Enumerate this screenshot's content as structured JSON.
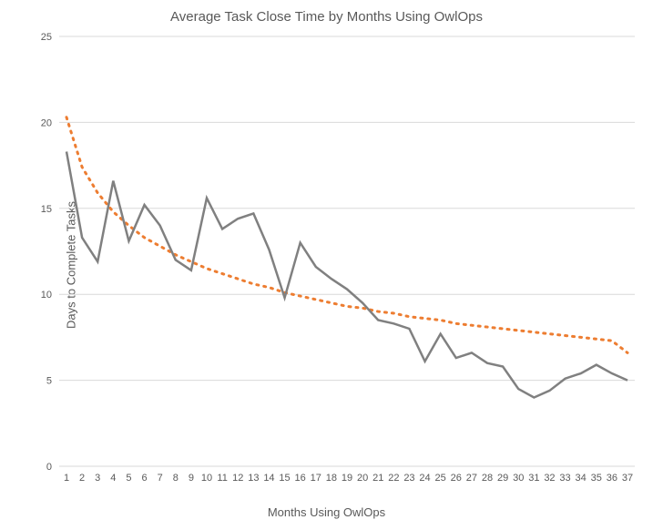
{
  "chart": {
    "type": "line",
    "title": "Average Task Close Time by Months Using OwlOps",
    "title_fontsize": 15,
    "title_color": "#595959",
    "xlabel": "Months Using OwlOps",
    "ylabel": "Days to Complete Tasks",
    "label_fontsize": 13,
    "label_color": "#595959",
    "background_color": "#ffffff",
    "grid_color": "#d9d9d9",
    "tick_color": "#595959",
    "tick_fontsize": 11,
    "ylim": [
      0,
      25
    ],
    "ytick_step": 5,
    "yticks": [
      0,
      5,
      10,
      15,
      20,
      25
    ],
    "xlim": [
      1,
      37
    ],
    "xticks": [
      1,
      2,
      3,
      4,
      5,
      6,
      7,
      8,
      9,
      10,
      11,
      12,
      13,
      14,
      15,
      16,
      17,
      18,
      19,
      20,
      21,
      22,
      23,
      24,
      25,
      26,
      27,
      28,
      29,
      30,
      31,
      32,
      33,
      34,
      35,
      36,
      37
    ],
    "series": {
      "data_line": {
        "color": "#808080",
        "width": 2.5,
        "x": [
          1,
          2,
          3,
          4,
          5,
          6,
          7,
          8,
          9,
          10,
          11,
          12,
          13,
          14,
          15,
          16,
          17,
          18,
          19,
          20,
          21,
          22,
          23,
          24,
          25,
          26,
          27,
          28,
          29,
          30,
          31,
          32,
          33,
          34,
          35,
          36,
          37
        ],
        "y": [
          18.3,
          13.3,
          11.9,
          16.6,
          13.1,
          15.2,
          14.0,
          12.0,
          11.4,
          15.6,
          13.8,
          14.4,
          14.7,
          12.6,
          9.8,
          13.0,
          11.6,
          10.9,
          10.3,
          9.5,
          8.5,
          8.3,
          8.0,
          6.1,
          7.7,
          6.3,
          6.6,
          6.0,
          5.8,
          4.5,
          4.0,
          4.4,
          5.1,
          5.4,
          5.9,
          5.4,
          5.0
        ]
      },
      "trend_line": {
        "color": "#ed7d31",
        "width": 3,
        "dash": "2 6",
        "x": [
          1,
          2,
          3,
          4,
          5,
          6,
          7,
          8,
          9,
          10,
          11,
          12,
          13,
          14,
          15,
          16,
          17,
          18,
          19,
          20,
          21,
          22,
          23,
          24,
          25,
          26,
          27,
          28,
          29,
          30,
          31,
          32,
          33,
          34,
          35,
          36,
          37
        ],
        "y": [
          20.3,
          17.4,
          15.9,
          14.8,
          14.0,
          13.3,
          12.8,
          12.3,
          11.9,
          11.5,
          11.2,
          10.9,
          10.6,
          10.4,
          10.1,
          9.9,
          9.7,
          9.5,
          9.3,
          9.2,
          9.0,
          8.9,
          8.7,
          8.6,
          8.5,
          8.3,
          8.2,
          8.1,
          8.0,
          7.9,
          7.8,
          7.7,
          7.6,
          7.5,
          7.4,
          7.3,
          6.6
        ]
      }
    }
  }
}
